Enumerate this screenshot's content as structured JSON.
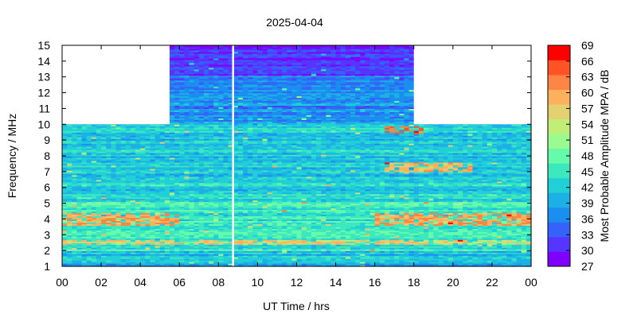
{
  "chart_data": {
    "type": "heatmap",
    "title": "2025-04-04",
    "xlabel": "UT Time / hrs",
    "ylabel": "Frequency / MHz",
    "colorbar_label": "Most Probable Amplitude MPA / dB",
    "xlim": [
      0,
      24
    ],
    "ylim": [
      1,
      15
    ],
    "x_ticks": [
      "00",
      "02",
      "04",
      "06",
      "08",
      "10",
      "12",
      "14",
      "16",
      "18",
      "20",
      "22",
      "00"
    ],
    "y_ticks": [
      "1",
      "2",
      "3",
      "4",
      "5",
      "6",
      "7",
      "8",
      "9",
      "10",
      "11",
      "12",
      "13",
      "14",
      "15"
    ],
    "colorbar_ticks": [
      "27",
      "30",
      "33",
      "36",
      "39",
      "42",
      "45",
      "48",
      "51",
      "54",
      "57",
      "60",
      "63",
      "66",
      "69"
    ],
    "colorbar_range": [
      27,
      69
    ],
    "colorbar_colors": [
      "#7f00ff",
      "#5535ff",
      "#3563fa",
      "#1a8fef",
      "#1cb0e6",
      "#21d0d6",
      "#3de8bd",
      "#65fbaa",
      "#9afb91",
      "#c2ee77",
      "#e3d070",
      "#fdb15d",
      "#ff8545",
      "#ff5325",
      "#ff0000"
    ],
    "missing_time_ranges_hours": [
      [
        8.7,
        8.8
      ]
    ],
    "no_data_regions": [
      {
        "x": [
          0,
          5.5
        ],
        "y": [
          10,
          15
        ]
      },
      {
        "x": [
          18,
          24
        ],
        "y": [
          10,
          15
        ]
      }
    ],
    "typical_mpa_db": {
      "1-2 MHz": 40,
      "2-5 MHz": 45,
      "5-10 MHz": 42,
      "10-13 MHz (5.5-18 h)": 37,
      "13-15 MHz (5.5-18 h)": 31
    },
    "enhanced_bands": [
      {
        "freq_mhz": [
          3.6,
          4.4
        ],
        "hours": [
          [
            0,
            6
          ],
          [
            16,
            24
          ]
        ],
        "mpa_db": 60
      },
      {
        "freq_mhz": [
          2.4,
          2.7
        ],
        "hours": [
          [
            0,
            24
          ]
        ],
        "mpa_db": 57
      },
      {
        "freq_mhz": [
          9.3,
          9.8
        ],
        "hours": [
          [
            16.5,
            18.5
          ]
        ],
        "mpa_db": 63
      },
      {
        "freq_mhz": [
          6.9,
          7.5
        ],
        "hours": [
          [
            16.5,
            21
          ]
        ],
        "mpa_db": 58
      }
    ]
  }
}
